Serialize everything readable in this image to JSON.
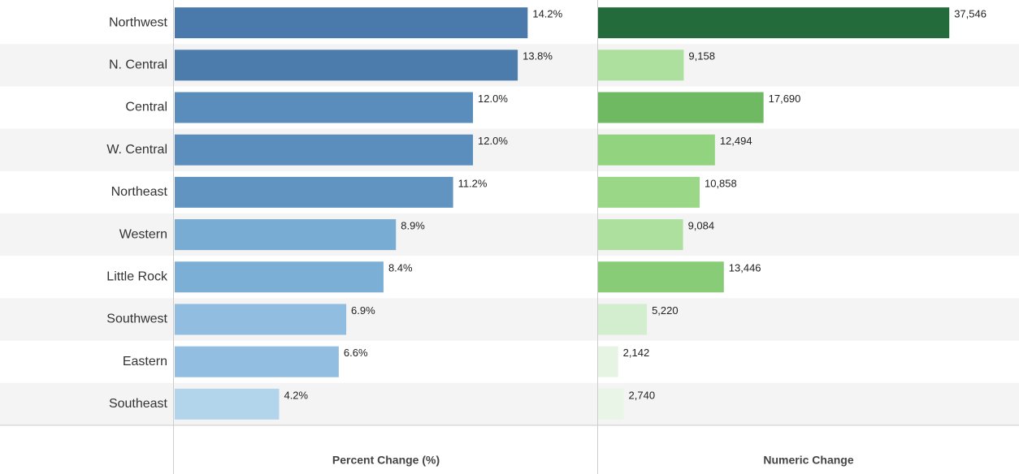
{
  "chart_data": {
    "type": "bar",
    "orientation": "horizontal",
    "categories": [
      "Northwest",
      "N. Central",
      "Central",
      "W. Central",
      "Northeast",
      "Western",
      "Little Rock",
      "Southwest",
      "Eastern",
      "Southeast"
    ],
    "series": [
      {
        "name": "Percent Change (%)",
        "xlim": [
          0,
          17
        ],
        "values": [
          14.2,
          13.8,
          12.0,
          12.0,
          11.2,
          8.9,
          8.4,
          6.9,
          6.6,
          4.2
        ],
        "value_labels": [
          "14.2%",
          "13.8%",
          "12.0%",
          "12.0%",
          "11.2%",
          "8.9%",
          "8.4%",
          "6.9%",
          "6.6%",
          "4.2%"
        ],
        "colors": [
          "#4a7aab",
          "#4c7cac",
          "#5a8cbc",
          "#5b8dbd",
          "#6294c1",
          "#79acd3",
          "#7cafd5",
          "#90bde0",
          "#92bfe1",
          "#b3d5ec"
        ]
      },
      {
        "name": "Numeric Change",
        "xlim": [
          0,
          45000
        ],
        "values": [
          37546,
          9158,
          17690,
          12494,
          10858,
          9084,
          13446,
          5220,
          2142,
          2740
        ],
        "value_labels": [
          "37,546",
          "9,158",
          "17,690",
          "12,494",
          "10,858",
          "9,084",
          "13,446",
          "5,220",
          "2,142",
          "2,740"
        ],
        "colors": [
          "#236b3b",
          "#addf9f",
          "#6fb963",
          "#92d37f",
          "#9ad887",
          "#addf9f",
          "#88cc77",
          "#d3edcf",
          "#e6f5e3",
          "#e9f6e7"
        ]
      }
    ]
  }
}
